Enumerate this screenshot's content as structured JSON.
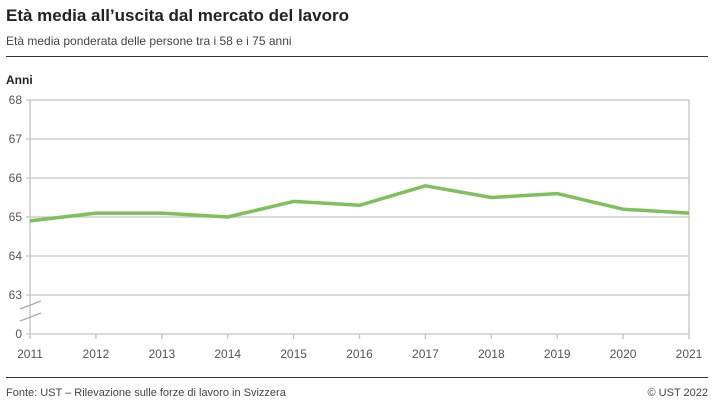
{
  "title": "Età media all’uscita dal mercato del lavoro",
  "subtitle": "Età media ponderata delle persone tra i 58 e i 75 anni",
  "footer": {
    "source": "Fonte: UST – Rilevazione sulle forze di lavoro in Svizzera",
    "copyright": "© UST 2022"
  },
  "chart_data": {
    "type": "line",
    "title": "Età media all’uscita dal mercato del lavoro",
    "ylabel": "Anni",
    "x": [
      2011,
      2012,
      2013,
      2014,
      2015,
      2016,
      2017,
      2018,
      2019,
      2020,
      2021
    ],
    "series": [
      {
        "values": [
          64.9,
          65.1,
          65.1,
          65.0,
          65.4,
          65.3,
          65.8,
          65.5,
          65.6,
          65.2,
          65.1
        ],
        "color": "#7dc05c"
      }
    ],
    "yticks": [
      0,
      63,
      64,
      65,
      66,
      67,
      68
    ],
    "ylim": [
      63,
      68
    ],
    "axis_break": true,
    "grid": true
  }
}
